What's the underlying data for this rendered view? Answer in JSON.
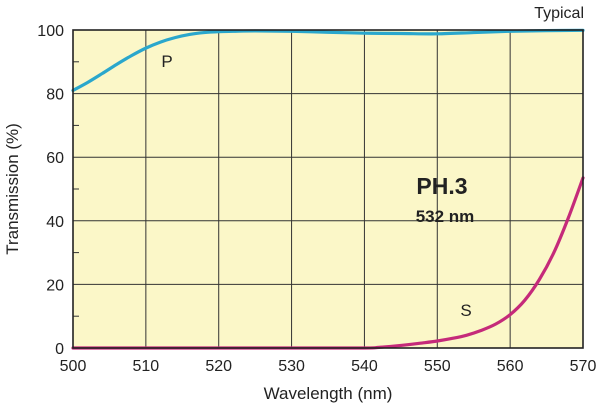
{
  "chart_data": {
    "type": "line",
    "title": "PH.3",
    "subtitle": "532 nm",
    "note": "Typical",
    "xlabel": "Wavelength (nm)",
    "ylabel": "Transmission (%)",
    "xlim": [
      500,
      570
    ],
    "ylim": [
      0,
      100
    ],
    "x_ticks": [
      500,
      510,
      520,
      530,
      540,
      550,
      560,
      570
    ],
    "y_ticks": [
      0,
      20,
      40,
      60,
      80,
      100
    ],
    "x_tick_labels": [
      "500",
      "510",
      "520",
      "530",
      "540",
      "550",
      "560",
      "570"
    ],
    "y_tick_labels": [
      "0",
      "20",
      "40",
      "60",
      "80",
      "100"
    ],
    "grid": true,
    "background_color": "#fbf7c8",
    "series": [
      {
        "name": "P",
        "color": "#2aa7cc",
        "x": [
          500,
          502,
          504,
          506,
          508,
          510,
          512,
          514,
          516,
          518,
          520,
          522,
          525,
          530,
          535,
          540,
          545,
          550,
          555,
          560,
          565,
          570
        ],
        "y": [
          81,
          83.5,
          86.3,
          89.2,
          91.9,
          94.3,
          96.2,
          97.6,
          98.6,
          99.2,
          99.5,
          99.6,
          99.7,
          99.6,
          99.3,
          99.0,
          98.9,
          98.8,
          99.2,
          99.6,
          99.8,
          99.9
        ]
      },
      {
        "name": "S",
        "color": "#c52a7a",
        "x": [
          500,
          510,
          520,
          530,
          540,
          542,
          545,
          548,
          550,
          552,
          554,
          556,
          558,
          560,
          562,
          564,
          566,
          568,
          570
        ],
        "y": [
          0,
          0,
          0,
          0,
          0,
          0.2,
          0.8,
          1.6,
          2.2,
          3.0,
          4.0,
          5.5,
          7.5,
          10.5,
          15.0,
          21.5,
          30.0,
          41.0,
          53.5
        ]
      }
    ]
  }
}
